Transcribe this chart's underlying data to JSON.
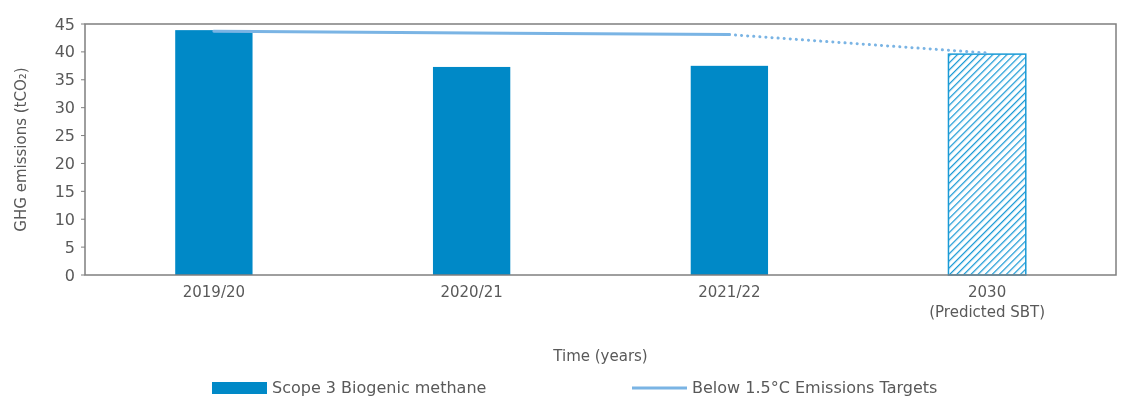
{
  "chart_data": {
    "type": "bar",
    "xlabel": "Time (years)",
    "ylabel": "GHG emissions (tCO₂)",
    "categories": [
      "2019/20",
      "2020/21",
      "2021/22",
      "2030\n(Predicted SBT)"
    ],
    "series": [
      {
        "name": "Scope 3 Biogenic methane",
        "color": "#0089c7",
        "colors": [
          "#0089c7",
          "#0089c7",
          "#0089c7",
          "#1a9ad6"
        ],
        "values": [
          43.9,
          37.3,
          37.5,
          39.6
        ]
      },
      {
        "name": "Below 1.5°C Emissions Targets",
        "type": "line",
        "color": "#7ab4e4",
        "line_style": "solid",
        "values": [
          43.7,
          43.4,
          43.1,
          null
        ]
      },
      {
        "type": "line",
        "color": "#7ab4e4",
        "line_style": "dotted",
        "values": [
          null,
          null,
          43.1,
          39.8
        ]
      }
    ],
    "ylim": [
      0,
      45
    ],
    "yticks": [
      0,
      5,
      10,
      15,
      20,
      25,
      30,
      35,
      40,
      45
    ],
    "grid": false,
    "legend": "bottom"
  }
}
